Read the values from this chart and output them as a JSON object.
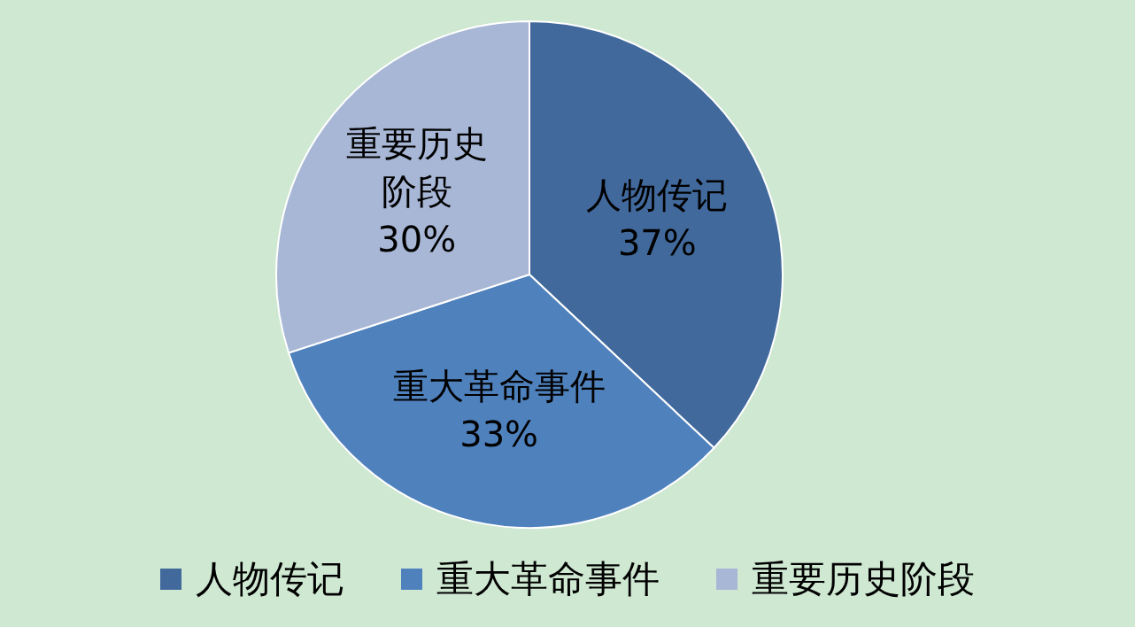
{
  "chart_data": {
    "type": "pie",
    "categories": [
      "人物传记",
      "重大革命事件",
      "重要历史阶段"
    ],
    "values": [
      37,
      33,
      30
    ],
    "colors": [
      "#41699c",
      "#4f81bd",
      "#a8b7d6"
    ],
    "value_labels": [
      "37%",
      "33%",
      "30%"
    ],
    "legend": "bottom"
  }
}
